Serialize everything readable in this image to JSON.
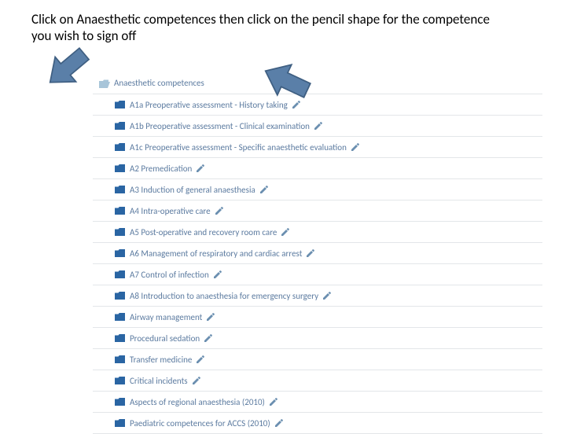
{
  "instruction": "Click on Anaesthetic competences then click on the pencil shape for the competence you wish to sign off",
  "colors": {
    "folder_open": "#a8c5d9",
    "folder_closed": "#2a65a3",
    "link_text": "#5c7ba0",
    "pencil": "#6b8fb0",
    "divider": "#e3e6e9",
    "arrow_fill": "#5a7fa8",
    "arrow_stroke": "#3f5f82"
  },
  "list": {
    "parent": {
      "label": "Anaesthetic competences",
      "icon": "folder-open"
    },
    "items": [
      {
        "label": "A1a Preoperative assessment - History taking"
      },
      {
        "label": "A1b Preoperative assessment - Clinical examination"
      },
      {
        "label": "A1c Preoperative assessment - Specific anaesthetic evaluation"
      },
      {
        "label": "A2 Premedication"
      },
      {
        "label": "A3 Induction of general anaesthesia"
      },
      {
        "label": "A4 Intra-operative care"
      },
      {
        "label": "A5 Post-operative and recovery room care"
      },
      {
        "label": "A6 Management of respiratory and cardiac arrest"
      },
      {
        "label": "A7 Control of infection"
      },
      {
        "label": "A8 Introduction to anaesthesia for emergency surgery"
      },
      {
        "label": "Airway management"
      },
      {
        "label": "Procedural sedation"
      },
      {
        "label": "Transfer medicine"
      },
      {
        "label": "Critical incidents"
      },
      {
        "label": "Aspects of regional anaesthesia (2010)"
      },
      {
        "label": "Paediatric competences for ACCS (2010)"
      }
    ]
  },
  "arrows": {
    "left": {
      "rotation_deg": 140
    },
    "right": {
      "rotation_deg": 205
    }
  }
}
